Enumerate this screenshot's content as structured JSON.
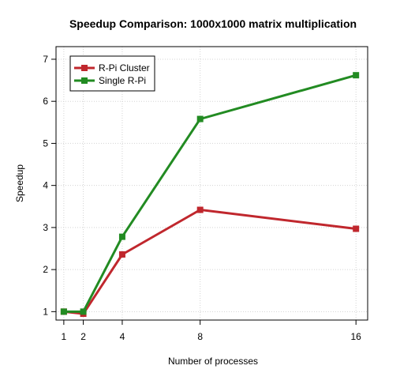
{
  "chart_data": {
    "type": "line",
    "title": "Speedup Comparison: 1000x1000 matrix multiplication",
    "xlabel": "Number of processes",
    "ylabel": "Speedup",
    "x": [
      1,
      2,
      4,
      8,
      16
    ],
    "xlim": [
      0.6,
      16.6
    ],
    "ylim": [
      0.8,
      7.3
    ],
    "xticks": [
      1,
      2,
      4,
      8,
      16
    ],
    "yticks": [
      1,
      2,
      3,
      4,
      5,
      6,
      7
    ],
    "grid": true,
    "legend_position": "top-left",
    "series": [
      {
        "name": "R-Pi Cluster",
        "color": "#c0272d",
        "values": [
          1.0,
          0.95,
          2.36,
          3.42,
          2.97
        ]
      },
      {
        "name": "Single R-Pi",
        "color": "#228b22",
        "values": [
          1.0,
          1.0,
          2.78,
          5.58,
          6.62
        ]
      }
    ]
  }
}
